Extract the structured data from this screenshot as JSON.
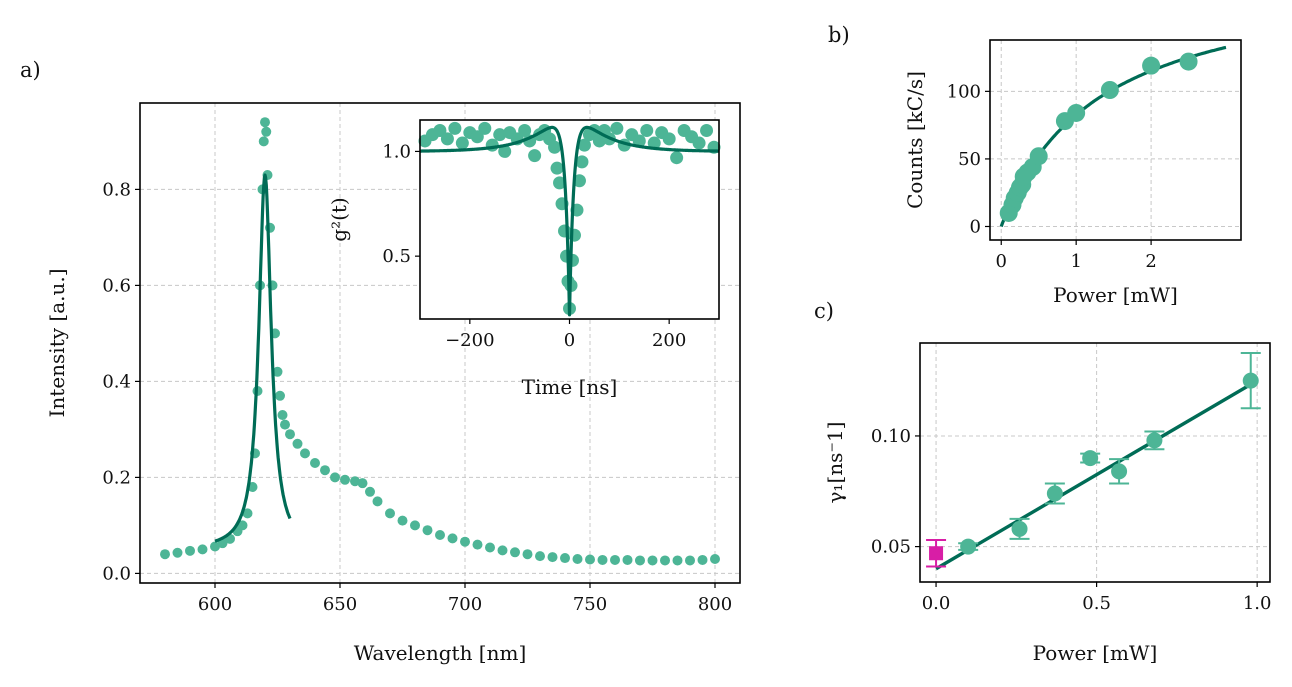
{
  "colors": {
    "data_points": "#4db596",
    "fit_line": "#006c56",
    "zero_power_point": "#d81ea6",
    "grid": "#c8c8c8",
    "axes": "#000000"
  },
  "chart_data": [
    {
      "id": "a",
      "panel_label": "a)",
      "type": "scatter",
      "xlabel": "Wavelength [nm]",
      "ylabel": "Intensity [a.u.]",
      "xlim": [
        570,
        810
      ],
      "ylim": [
        -0.02,
        0.98
      ],
      "xticks": [
        600,
        650,
        700,
        750,
        800
      ],
      "yticks": [
        0.0,
        0.2,
        0.4,
        0.6,
        0.8
      ],
      "xtick_labels": [
        "600",
        "650",
        "700",
        "750",
        "800"
      ],
      "ytick_labels": [
        "0.0",
        "0.2",
        "0.4",
        "0.6",
        "0.8"
      ],
      "grid": true,
      "spectrum_points": [
        [
          580,
          0.04
        ],
        [
          585,
          0.043
        ],
        [
          590,
          0.047
        ],
        [
          595,
          0.05
        ],
        [
          600,
          0.056
        ],
        [
          603,
          0.063
        ],
        [
          606,
          0.072
        ],
        [
          609,
          0.088
        ],
        [
          611,
          0.1
        ],
        [
          613,
          0.125
        ],
        [
          615,
          0.18
        ],
        [
          616,
          0.25
        ],
        [
          617,
          0.38
        ],
        [
          618,
          0.6
        ],
        [
          619,
          0.8
        ],
        [
          619.5,
          0.9
        ],
        [
          620,
          0.94
        ],
        [
          620.5,
          0.92
        ],
        [
          621,
          0.83
        ],
        [
          622,
          0.72
        ],
        [
          623,
          0.6
        ],
        [
          624,
          0.5
        ],
        [
          625,
          0.42
        ],
        [
          626,
          0.37
        ],
        [
          627,
          0.33
        ],
        [
          628,
          0.31
        ],
        [
          630,
          0.29
        ],
        [
          633,
          0.27
        ],
        [
          636,
          0.25
        ],
        [
          640,
          0.23
        ],
        [
          644,
          0.215
        ],
        [
          648,
          0.2
        ],
        [
          652,
          0.195
        ],
        [
          656,
          0.192
        ],
        [
          659,
          0.188
        ],
        [
          662,
          0.17
        ],
        [
          665,
          0.15
        ],
        [
          670,
          0.125
        ],
        [
          675,
          0.11
        ],
        [
          680,
          0.1
        ],
        [
          685,
          0.09
        ],
        [
          690,
          0.08
        ],
        [
          695,
          0.073
        ],
        [
          700,
          0.066
        ],
        [
          705,
          0.06
        ],
        [
          710,
          0.054
        ],
        [
          715,
          0.048
        ],
        [
          720,
          0.044
        ],
        [
          725,
          0.04
        ],
        [
          730,
          0.036
        ],
        [
          735,
          0.034
        ],
        [
          740,
          0.032
        ],
        [
          745,
          0.03
        ],
        [
          750,
          0.029
        ],
        [
          755,
          0.028
        ],
        [
          760,
          0.028
        ],
        [
          765,
          0.028
        ],
        [
          770,
          0.027
        ],
        [
          775,
          0.027
        ],
        [
          780,
          0.027
        ],
        [
          785,
          0.027
        ],
        [
          790,
          0.027
        ],
        [
          795,
          0.028
        ],
        [
          800,
          0.03
        ]
      ],
      "fit_model": {
        "x0": 620,
        "gamma": 3.0,
        "amplitude": 0.78,
        "offset": 0.05,
        "x_range": [
          600,
          630
        ]
      }
    },
    {
      "id": "inset",
      "panel_label": "",
      "type": "scatter",
      "xlabel": "Time [ns]",
      "ylabel": "g²(t)",
      "xlim": [
        -300,
        300
      ],
      "ylim": [
        0.2,
        1.15
      ],
      "xticks": [
        -200,
        0,
        200
      ],
      "yticks": [
        0.5,
        1.0
      ],
      "xtick_labels": [
        "−200",
        "0",
        "200"
      ],
      "ytick_labels": [
        "0.5",
        "1.0"
      ],
      "grid": false,
      "g2_points": [
        [
          -290,
          1.05
        ],
        [
          -275,
          1.08
        ],
        [
          -260,
          1.1
        ],
        [
          -245,
          1.06
        ],
        [
          -230,
          1.11
        ],
        [
          -215,
          1.04
        ],
        [
          -200,
          1.09
        ],
        [
          -185,
          1.07
        ],
        [
          -170,
          1.11
        ],
        [
          -155,
          1.03
        ],
        [
          -140,
          1.08
        ],
        [
          -130,
          1.0
        ],
        [
          -120,
          1.09
        ],
        [
          -105,
          1.06
        ],
        [
          -90,
          1.1
        ],
        [
          -80,
          1.05
        ],
        [
          -70,
          0.98
        ],
        [
          -60,
          1.08
        ],
        [
          -50,
          1.1
        ],
        [
          -40,
          1.06
        ],
        [
          -30,
          1.02
        ],
        [
          -25,
          0.92
        ],
        [
          -20,
          0.85
        ],
        [
          -15,
          0.75
        ],
        [
          -10,
          0.62
        ],
        [
          -6,
          0.5
        ],
        [
          -3,
          0.38
        ],
        [
          0,
          0.25
        ],
        [
          3,
          0.36
        ],
        [
          6,
          0.48
        ],
        [
          10,
          0.6
        ],
        [
          15,
          0.72
        ],
        [
          20,
          0.86
        ],
        [
          25,
          0.95
        ],
        [
          30,
          1.03
        ],
        [
          40,
          1.08
        ],
        [
          50,
          1.1
        ],
        [
          60,
          1.05
        ],
        [
          70,
          1.1
        ],
        [
          80,
          1.06
        ],
        [
          95,
          1.11
        ],
        [
          110,
          1.03
        ],
        [
          125,
          1.08
        ],
        [
          140,
          1.05
        ],
        [
          155,
          1.1
        ],
        [
          170,
          1.04
        ],
        [
          185,
          1.09
        ],
        [
          200,
          1.06
        ],
        [
          215,
          0.97
        ],
        [
          230,
          1.1
        ],
        [
          245,
          1.07
        ],
        [
          260,
          1.04
        ],
        [
          275,
          1.1
        ],
        [
          290,
          1.02
        ]
      ],
      "fit_model": {
        "baseline": 1.0,
        "dip_depth": 0.78,
        "tau_dip_ns": 8,
        "bunch_amp": 0.13,
        "tau_bunch_ns": 60
      }
    },
    {
      "id": "b",
      "panel_label": "b)",
      "type": "scatter",
      "xlabel": "Power [mW]",
      "ylabel": "Counts [kC/s]",
      "xlim": [
        -0.15,
        3.2
      ],
      "ylim": [
        -10,
        138
      ],
      "xticks": [
        0,
        1,
        2
      ],
      "yticks": [
        0,
        50,
        100
      ],
      "xtick_labels": [
        "0",
        "1",
        "2"
      ],
      "ytick_labels": [
        "0",
        "50",
        "100"
      ],
      "grid": true,
      "points": [
        [
          0.1,
          10
        ],
        [
          0.15,
          16
        ],
        [
          0.18,
          21
        ],
        [
          0.22,
          25
        ],
        [
          0.25,
          29
        ],
        [
          0.28,
          31
        ],
        [
          0.3,
          37
        ],
        [
          0.35,
          40
        ],
        [
          0.42,
          44
        ],
        [
          0.5,
          52
        ],
        [
          0.85,
          78
        ],
        [
          1.0,
          84
        ],
        [
          1.45,
          101
        ],
        [
          2.0,
          119
        ],
        [
          2.5,
          122
        ]
      ],
      "fit_model": {
        "c_sat": 190,
        "p_sat": 1.3,
        "x_range": [
          0,
          3.0
        ]
      }
    },
    {
      "id": "c",
      "panel_label": "c)",
      "type": "scatter",
      "xlabel": "Power [mW]",
      "ylabel": "γ₁[ns⁻1]",
      "xlim": [
        -0.05,
        1.04
      ],
      "ylim": [
        0.034,
        0.142
      ],
      "xticks": [
        0.0,
        0.5,
        1.0
      ],
      "yticks": [
        0.05,
        0.1
      ],
      "xtick_labels": [
        "0.0",
        "0.5",
        "1.0"
      ],
      "ytick_labels": [
        "0.05",
        "0.10"
      ],
      "grid": true,
      "points": [
        {
          "x": 0.1,
          "y": 0.05,
          "err": 0.0015
        },
        {
          "x": 0.26,
          "y": 0.058,
          "err": 0.0045
        },
        {
          "x": 0.37,
          "y": 0.074,
          "err": 0.0045
        },
        {
          "x": 0.48,
          "y": 0.09,
          "err": 0.002
        },
        {
          "x": 0.57,
          "y": 0.084,
          "err": 0.0055
        },
        {
          "x": 0.68,
          "y": 0.098,
          "err": 0.004
        },
        {
          "x": 0.98,
          "y": 0.125,
          "err": 0.0125
        }
      ],
      "zero_power_point": {
        "x": 0.0,
        "y": 0.047,
        "err": 0.006
      },
      "fit_line": {
        "x": [
          0.0,
          1.0
        ],
        "y": [
          0.04,
          0.125
        ]
      }
    }
  ]
}
